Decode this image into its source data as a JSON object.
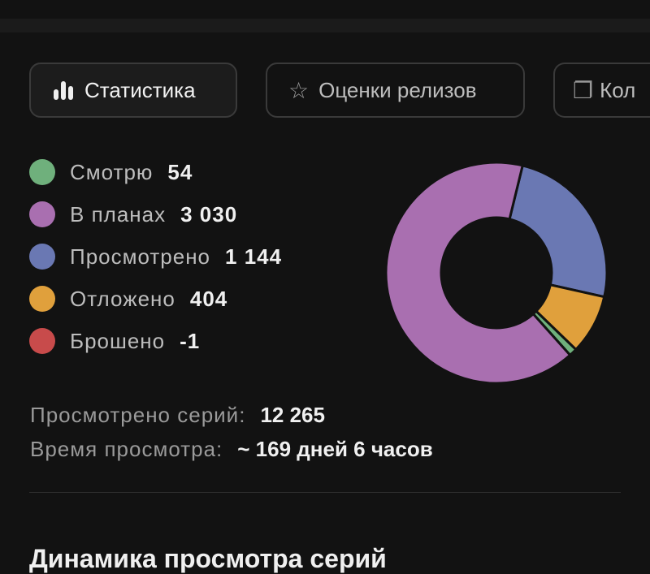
{
  "tabs": [
    {
      "label": "Статистика",
      "icon": "bar-chart-icon",
      "active": true
    },
    {
      "label": "Оценки релизов",
      "icon": "star-icon"
    },
    {
      "label": "Кол",
      "icon": "collection-icon"
    }
  ],
  "legend": [
    {
      "label": "Смотрю",
      "value": "54",
      "color": "#6fb07c"
    },
    {
      "label": "В планах",
      "value": "3 030",
      "color": "#a96fb0"
    },
    {
      "label": "Просмотрено",
      "value": "1 144",
      "color": "#6a78b3"
    },
    {
      "label": "Отложено",
      "value": "404",
      "color": "#e0a03c"
    },
    {
      "label": "Брошено",
      "value": "-1",
      "color": "#c84b4b"
    }
  ],
  "stats": {
    "episodes_label": "Просмотрено серий:",
    "episodes_value": "12 265",
    "time_label": "Время просмотра:",
    "time_value": "~ 169 дней 6 часов"
  },
  "section_title": "Динамика просмотра серий",
  "chart_data": {
    "type": "pie",
    "donut": true,
    "categories": [
      "Просмотрено",
      "Отложено",
      "Смотрю",
      "В планах",
      "Брошено"
    ],
    "values": [
      1144,
      404,
      54,
      3030,
      -1
    ],
    "colors": [
      "#6a78b3",
      "#e0a03c",
      "#6fb07c",
      "#a96fb0",
      "#c84b4b"
    ]
  }
}
